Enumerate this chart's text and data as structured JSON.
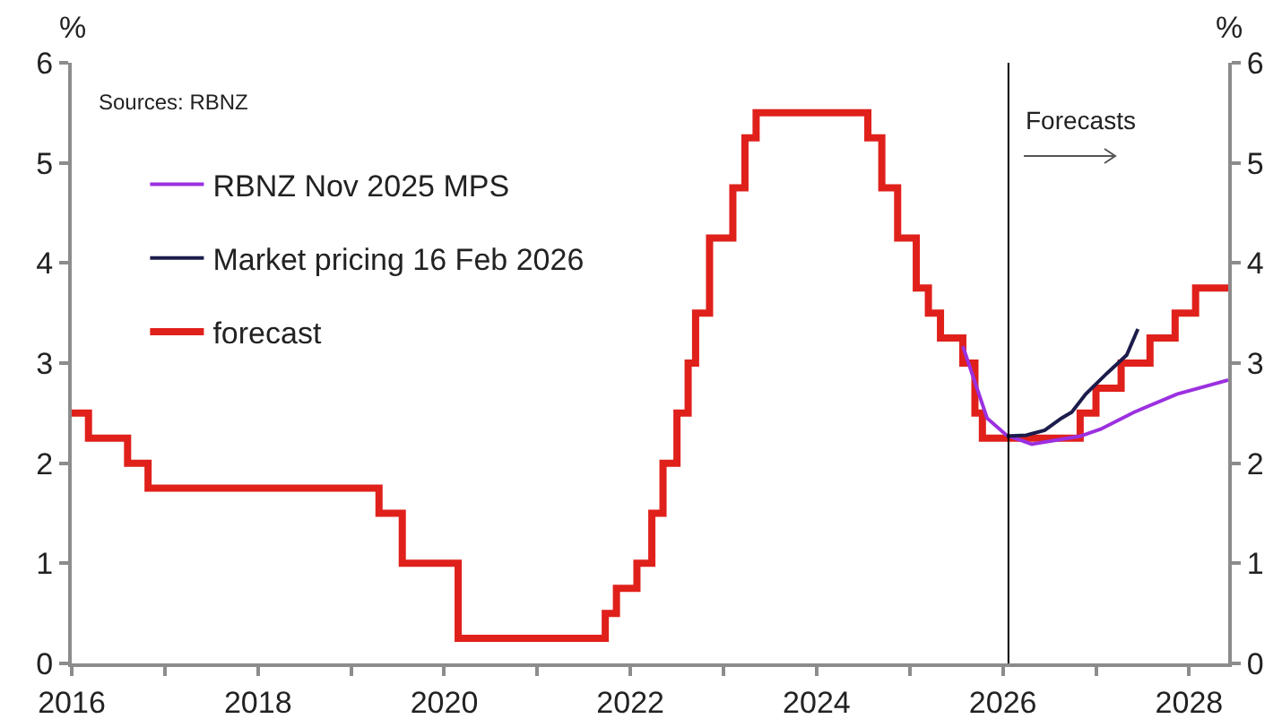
{
  "chart_data": {
    "type": "line",
    "ylabel": "%",
    "y2label": "%",
    "xlim": [
      2016,
      2028.42
    ],
    "xticks": [
      2016,
      {
        "value": 2017,
        "label": null
      },
      2018,
      {
        "value": 2019,
        "label": null
      },
      2020,
      {
        "value": 2021,
        "label": null
      },
      2022,
      {
        "value": 2023,
        "label": null
      },
      2024,
      {
        "value": 2025,
        "label": null
      },
      2026,
      {
        "value": 2027,
        "label": null
      },
      2028
    ],
    "ylim": [
      0,
      6
    ],
    "yticks": [
      0,
      1,
      2,
      3,
      4,
      5,
      6
    ],
    "y2lim": [
      0,
      6
    ],
    "y2ticks": [
      0,
      1,
      2,
      3,
      4,
      5,
      6
    ],
    "grid": false,
    "legend": "top left",
    "marker": "none",
    "line_style": "solid",
    "ref_lines": [
      {
        "axis": "x",
        "value": 2026.06,
        "label": null,
        "color": "#000000"
      }
    ],
    "annotations": [
      "Sources: RBNZ",
      "Forecasts"
    ],
    "series": [
      {
        "name": "RBNZ Nov 2025 MPS",
        "color": "#9b30e0",
        "x": [
          2025.57,
          2025.83,
          2026.04,
          2026.31,
          2026.83,
          2027.05,
          2027.41,
          2027.87,
          2028.42
        ],
        "values": [
          3.17,
          2.45,
          2.28,
          2.19,
          2.27,
          2.34,
          2.51,
          2.69,
          2.83
        ]
      },
      {
        "name": "Market pricing 16 Feb 2026",
        "color": "#1c1c4c",
        "x": [
          2026.04,
          2026.25,
          2026.45,
          2026.63,
          2026.74,
          2026.89,
          2027.12,
          2027.33,
          2027.45
        ],
        "values": [
          2.27,
          2.28,
          2.33,
          2.45,
          2.51,
          2.69,
          2.9,
          3.08,
          3.34
        ]
      },
      {
        "name": "forecast",
        "color": "#e0201b",
        "type": "step",
        "x": [
          2016,
          2016.18,
          2016.6,
          2016.82,
          2019.3,
          2019.55,
          2020.15,
          2021.73,
          2021.85,
          2022.07,
          2022.23,
          2022.35,
          2022.5,
          2022.62,
          2022.7,
          2022.85,
          2023.1,
          2023.23,
          2023.35,
          2024.55,
          2024.7,
          2024.87,
          2025.07,
          2025.2,
          2025.33,
          2025.57,
          2025.7,
          2025.78,
          2026.83,
          2027.0,
          2027.27,
          2027.58,
          2027.85,
          2028.07,
          2028.42
        ],
        "values": [
          2.5,
          2.25,
          2.0,
          1.75,
          1.5,
          1.0,
          0.25,
          0.5,
          0.75,
          1.0,
          1.5,
          2.0,
          2.5,
          3.0,
          3.5,
          4.25,
          4.75,
          5.25,
          5.5,
          5.25,
          4.75,
          4.25,
          3.75,
          3.5,
          3.25,
          3.0,
          2.5,
          2.25,
          2.5,
          2.75,
          3.0,
          3.25,
          3.5,
          3.75,
          3.75
        ]
      }
    ]
  }
}
